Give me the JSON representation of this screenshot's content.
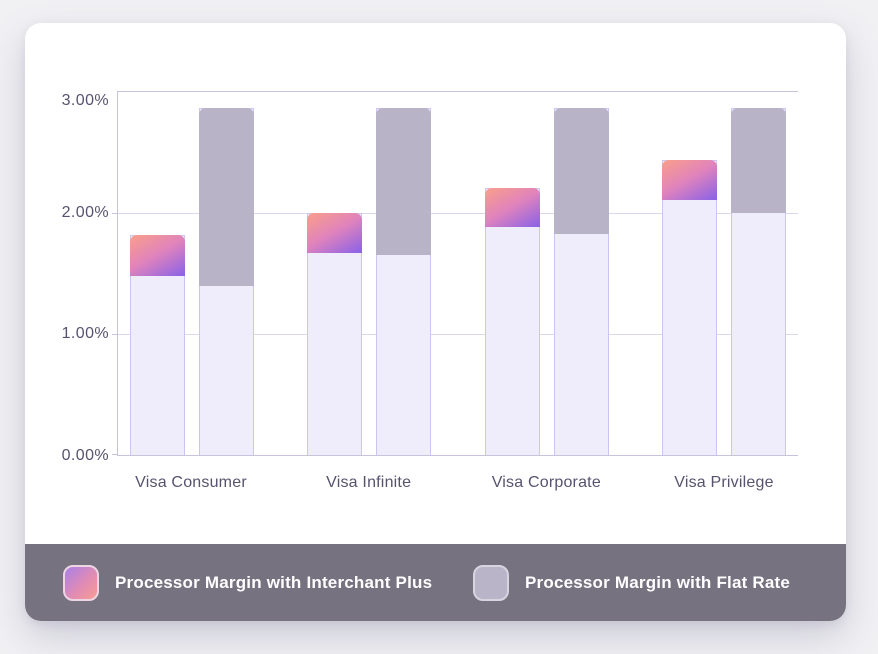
{
  "chart_data": {
    "type": "bar",
    "subtype": "grouped-stacked",
    "title": "",
    "xlabel": "",
    "ylabel": "",
    "categories": [
      "Visa Consumer",
      "Visa Infinite",
      "Visa Corporate",
      "Visa Privilege"
    ],
    "series": [
      {
        "key": "interchant-plus",
        "name": "Processor Margin with Interchant Plus",
        "base_values": [
          1.48,
          1.67,
          1.88,
          2.11
        ],
        "total_values": [
          1.82,
          2.0,
          2.21,
          2.44
        ],
        "segment_style": "gradient"
      },
      {
        "key": "flat-rate",
        "name": "Processor Margin with Flat Rate",
        "base_values": [
          1.39,
          1.65,
          1.82,
          2.0
        ],
        "total_values": [
          2.87,
          2.87,
          2.87,
          2.87
        ],
        "segment_style": "flat"
      }
    ],
    "ylim": [
      0,
      3
    ],
    "ytick_labels": [
      "3.00%",
      "2.00%",
      "1.00%",
      "0.00%"
    ],
    "grid": true,
    "legend_position": "bottom"
  },
  "legend": {
    "items": [
      {
        "label": "Processor Margin with Interchant Plus",
        "swatch": "gradient"
      },
      {
        "label": "Processor Margin with Flat Rate",
        "swatch": "gray"
      }
    ]
  },
  "colors": {
    "page_bg": "#F1F1F4",
    "card_bg": "#FFFFFF",
    "band_bg": "#767280",
    "grid_line": "#DCD8EC",
    "axis_line": "#C8C3DC",
    "tick_label": "#57536E",
    "bar_base_fill": "#EFECFC",
    "bar_base_border": "#CDC4F1",
    "flat_fill": "#B8B3C7",
    "gradient_start": "#F99E8B",
    "gradient_mid": "#E083BC",
    "gradient_end": "#8F64E4",
    "legend_text": "#FFFFFF",
    "legend_swatch_flat": "#B9B4C8",
    "legend_swatch_flat_border": "#D8D5E1",
    "legend_swatch_grad_start": "#A980E8",
    "legend_swatch_grad_mid": "#E08BB4",
    "legend_swatch_grad_end": "#F99D92",
    "legend_swatch_grad_border": "#EDD5E4"
  }
}
